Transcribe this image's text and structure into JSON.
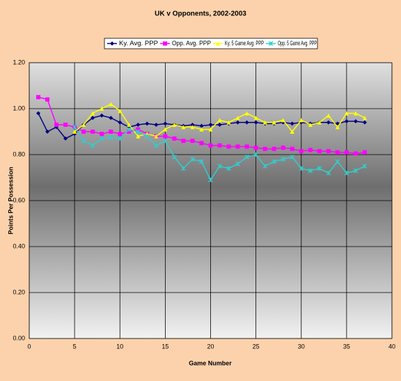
{
  "chart_data": {
    "type": "line",
    "title": "UK v Opponents, 2002-2003",
    "x_label": "Game Number",
    "y_label": "Points Per Possession",
    "x": [
      1,
      2,
      3,
      4,
      5,
      6,
      7,
      8,
      9,
      10,
      11,
      12,
      13,
      14,
      15,
      16,
      17,
      18,
      19,
      20,
      21,
      22,
      23,
      24,
      25,
      26,
      27,
      28,
      29,
      30,
      31,
      32,
      33,
      34,
      35,
      36,
      37
    ],
    "series": [
      {
        "name": "Ky. Avg. PPP",
        "color": "#000080",
        "marker": "diamond",
        "values": [
          0.98,
          0.9,
          0.92,
          0.87,
          0.89,
          0.93,
          0.96,
          0.97,
          0.96,
          0.94,
          0.92,
          0.93,
          0.935,
          0.93,
          0.935,
          0.93,
          0.925,
          0.93,
          0.925,
          0.93,
          0.93,
          0.935,
          0.94,
          0.94,
          0.94,
          0.935,
          0.935,
          0.94,
          0.935,
          0.94,
          0.935,
          0.94,
          0.94,
          0.935,
          0.945,
          0.945,
          0.94
        ]
      },
      {
        "name": "Opp. Avg. PPP",
        "color": "#ff00ff",
        "marker": "square",
        "values": [
          1.05,
          1.04,
          0.93,
          0.93,
          0.92,
          0.9,
          0.9,
          0.89,
          0.9,
          0.89,
          0.9,
          0.91,
          0.89,
          0.88,
          0.88,
          0.87,
          0.86,
          0.86,
          0.85,
          0.84,
          0.84,
          0.835,
          0.835,
          0.835,
          0.83,
          0.825,
          0.825,
          0.83,
          0.825,
          0.815,
          0.82,
          0.815,
          0.815,
          0.81,
          0.81,
          0.805,
          0.81
        ]
      },
      {
        "name": "Ky. 5 Game Avg. PPP",
        "color": "#ffff00",
        "marker": "triangle",
        "values": [
          null,
          null,
          null,
          null,
          0.9,
          0.93,
          0.98,
          1.0,
          1.02,
          0.99,
          0.93,
          0.88,
          0.89,
          0.88,
          0.91,
          0.93,
          0.92,
          0.92,
          0.91,
          0.91,
          0.95,
          0.94,
          0.96,
          0.98,
          0.96,
          0.94,
          0.94,
          0.95,
          0.9,
          0.95,
          0.93,
          0.94,
          0.97,
          0.92,
          0.98,
          0.98,
          0.96
        ]
      },
      {
        "name": "Opp. 5 Game Avg. PPP",
        "color": "#33cccc",
        "marker": "cross",
        "values": [
          null,
          null,
          null,
          null,
          0.92,
          0.86,
          0.84,
          0.87,
          0.875,
          0.87,
          0.91,
          0.9,
          0.88,
          0.84,
          0.86,
          0.79,
          0.74,
          0.78,
          0.77,
          0.69,
          0.75,
          0.74,
          0.76,
          0.79,
          0.8,
          0.75,
          0.77,
          0.78,
          0.79,
          0.74,
          0.73,
          0.74,
          0.72,
          0.77,
          0.72,
          0.73,
          0.75
        ]
      }
    ],
    "xlim": [
      0,
      40
    ],
    "xticks": [
      0,
      5,
      10,
      15,
      20,
      25,
      30,
      35,
      40
    ],
    "ylim": [
      0,
      1.2
    ],
    "yticks": [
      {
        "value": 0,
        "label": "0.00"
      },
      {
        "value": 0.2,
        "label": "0.20"
      },
      {
        "value": 0.4,
        "label": "0.40"
      },
      {
        "value": 0.6,
        "label": "0.60"
      },
      {
        "value": 0.8,
        "label": "0.80"
      },
      {
        "value": 1.0,
        "label": "1.00"
      },
      {
        "value": 1.2,
        "label": "1.20"
      }
    ],
    "grid": true,
    "legend": "top"
  }
}
